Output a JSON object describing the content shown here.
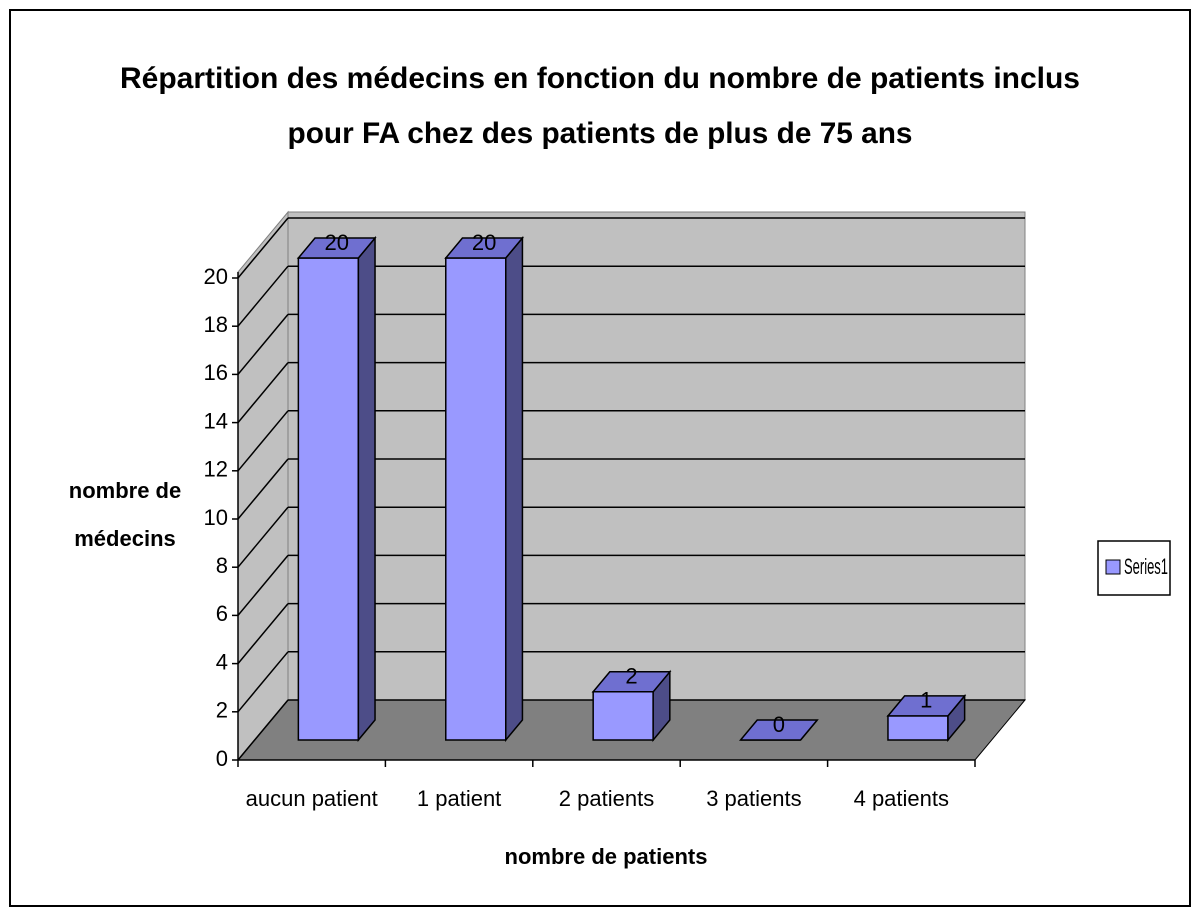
{
  "chart_data": {
    "type": "bar3d",
    "title": [
      "Répartition des médecins en fonction du nombre de patients inclus",
      "pour FA chez des patients de plus de 75 ans"
    ],
    "ylabel": [
      "nombre de",
      "médecins"
    ],
    "xlabel": "nombre de patients",
    "categories": [
      "aucun patient",
      "1 patient",
      "2 patients",
      "3 patients",
      "4 patients"
    ],
    "series": [
      {
        "name": "Series1",
        "color": "#9999ff",
        "values": [
          20,
          20,
          2,
          0,
          1
        ]
      }
    ],
    "ylim": [
      0,
      20
    ],
    "yticks": [
      0,
      2,
      4,
      6,
      8,
      10,
      12,
      14,
      16,
      18,
      20
    ],
    "grid": true,
    "legend": "right"
  }
}
